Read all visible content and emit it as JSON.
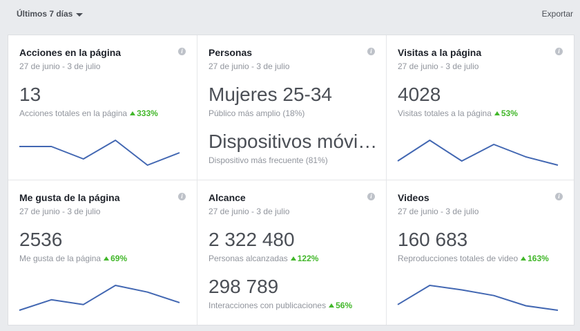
{
  "header": {
    "date_range_label": "Últimos 7 días",
    "export_label": "Exportar"
  },
  "accent_color": "#4267b2",
  "increase_color": "#42b72a",
  "cards": [
    {
      "title": "Acciones en la página",
      "date_range": "27 de junio - 3 de julio",
      "value": "13",
      "caption": "Acciones totales en la página",
      "change": "333%",
      "trend": [
        6,
        6,
        2,
        8,
        0,
        4
      ]
    },
    {
      "title": "Personas",
      "date_range": "27 de junio - 3 de julio",
      "value": "Mujeres 25-34",
      "caption": "Público más amplio (18%)",
      "value2": "Dispositivos móviles",
      "caption2": "Dispositivo más frecuente (81%)"
    },
    {
      "title": "Visitas a la página",
      "date_range": "27 de junio - 3 de julio",
      "value": "4028",
      "caption": "Visitas totales a la página",
      "change": "53%",
      "trend": [
        1,
        6,
        1,
        5,
        2,
        0
      ]
    },
    {
      "title": "Me gusta de la página",
      "date_range": "27 de junio - 3 de julio",
      "value": "2536",
      "caption": "Me gusta de la página",
      "change": "69%",
      "trend": [
        0,
        2.2,
        1.2,
        5.2,
        3.8,
        1.6
      ]
    },
    {
      "title": "Alcance",
      "date_range": "27 de junio - 3 de julio",
      "value": "2 322 480",
      "caption": "Personas alcanzadas",
      "change": "122%",
      "value2": "298 789",
      "caption2": "Interacciones con publicaciones",
      "change2": "56%"
    },
    {
      "title": "Videos",
      "date_range": "27 de junio - 3 de julio",
      "value": "160 683",
      "caption": "Reproducciones totales de video",
      "change": "163%",
      "trend": [
        1.6,
        5,
        4.2,
        3.2,
        1.4,
        0.6
      ]
    }
  ]
}
